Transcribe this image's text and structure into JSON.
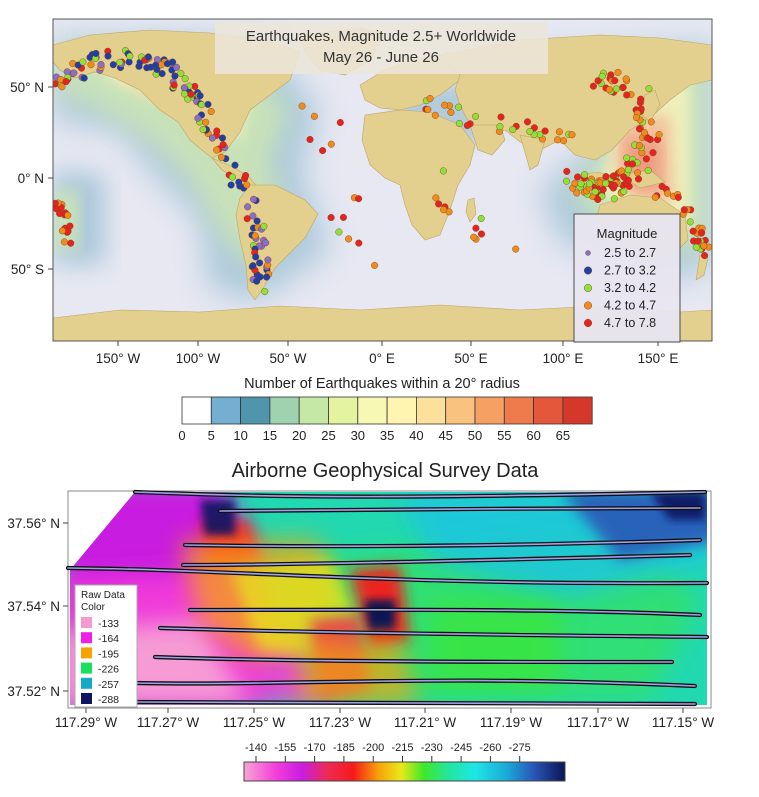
{
  "map1": {
    "title_line1": "Earthquakes, Magnitude 2.5+ Worldwide",
    "title_line2": "May 26 - June 26",
    "lat_labels": [
      "50° N",
      "0° N",
      "50° S"
    ],
    "lon_labels": [
      "150° W",
      "100° W",
      "50° W",
      "0° E",
      "50° E",
      "100° E",
      "150° E"
    ],
    "legend": {
      "title": "Magnitude",
      "entries": [
        {
          "label": "2.5  to  2.7",
          "color": "#8a6fc9"
        },
        {
          "label": "2.7  to  3.2",
          "color": "#1f3fa8"
        },
        {
          "label": "3.2  to  4.2",
          "color": "#8fe03a"
        },
        {
          "label": "4.2  to  4.7",
          "color": "#f08c1e"
        },
        {
          "label": "4.7  to  7.8",
          "color": "#e52421"
        }
      ]
    },
    "colorbar": {
      "title": "Number of Earthquakes within a 20° radius",
      "ticks": [
        "0",
        "5",
        "10",
        "15",
        "20",
        "25",
        "30",
        "35",
        "40",
        "45",
        "50",
        "55",
        "60",
        "65"
      ],
      "colors": [
        "#ffffff",
        "#74aed0",
        "#4f96ad",
        "#9fd3b0",
        "#c6e8a6",
        "#e4f3a0",
        "#f6f8b4",
        "#fff4b0",
        "#fde19a",
        "#f9c27e",
        "#f6a064",
        "#ef7a4c",
        "#e5573a",
        "#d6372b"
      ]
    }
  },
  "map2": {
    "title": "Airborne Geophysical Survey Data",
    "lat_labels": [
      "37.56° N",
      "37.54° N",
      "37.52° N"
    ],
    "lon_labels": [
      "117.29° W",
      "117.27° W",
      "117.25° W",
      "117.23° W",
      "117.21° W",
      "117.19° W",
      "117.17° W",
      "117.15° W"
    ],
    "legend": {
      "title_line1": "Raw Data",
      "title_line2": "Color",
      "entries": [
        {
          "label": "-133",
          "color": "#f59ad0"
        },
        {
          "label": "-164",
          "color": "#f01ee6"
        },
        {
          "label": "-195",
          "color": "#f5a300"
        },
        {
          "label": "-226",
          "color": "#19e05e"
        },
        {
          "label": "-257",
          "color": "#13a9c7"
        },
        {
          "label": "-288",
          "color": "#101560"
        }
      ]
    },
    "colorbar": {
      "ticks": [
        "-140",
        "-155",
        "-170",
        "-185",
        "-200",
        "-215",
        "-230",
        "-245",
        "-260",
        "-275"
      ]
    }
  }
}
